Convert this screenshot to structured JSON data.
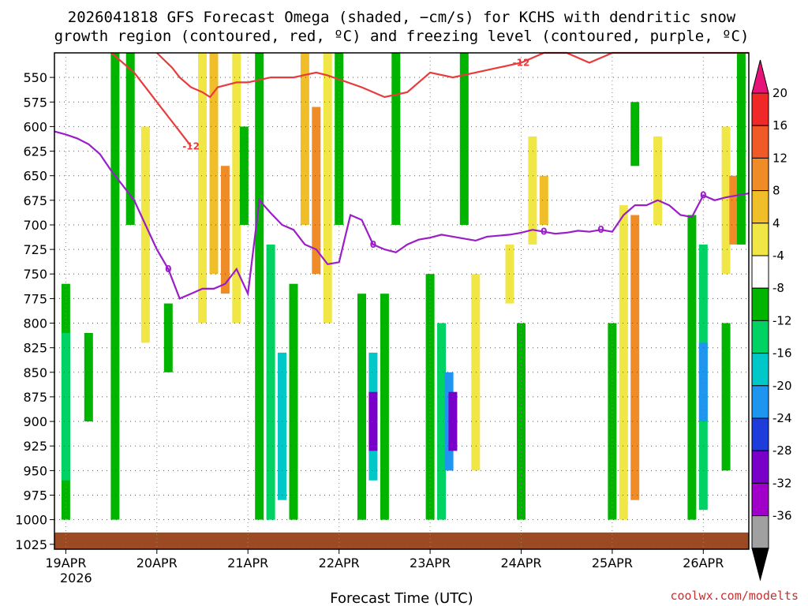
{
  "chart_data": {
    "type": "heatmap",
    "title_line1": "2026041818 GFS Forecast Omega (shaded, −cm/s) for KCHS with dendritic snow",
    "title_line2": "growth region (contoured, red, ºC) and freezing level (contoured, purple, ºC)",
    "xlabel": "Forecast Time (UTC)",
    "credit": "coolwx.com/modelts",
    "x_tick_labels": [
      "19APR",
      "20APR",
      "21APR",
      "22APR",
      "23APR",
      "24APR",
      "25APR",
      "26APR"
    ],
    "x_year_label": "2026",
    "x_range_hours": [
      -3,
      180
    ],
    "y_tick_labels": [
      "550",
      "575",
      "600",
      "625",
      "650",
      "675",
      "700",
      "725",
      "750",
      "775",
      "800",
      "825",
      "850",
      "875",
      "900",
      "925",
      "950",
      "975",
      "1000",
      "1025"
    ],
    "y_range_hpa": [
      525,
      1030
    ],
    "colorbar": {
      "labels": [
        "20",
        "16",
        "12",
        "8",
        "4",
        "-4",
        "-8",
        "-12",
        "-16",
        "-20",
        "-24",
        "-28",
        "-32",
        "-36"
      ],
      "bin_colors": [
        "#f02828",
        "#f05a28",
        "#f08c28",
        "#f0be28",
        "#f0e646",
        "#ffffff",
        "#00b400",
        "#00d264",
        "#00c8c8",
        "#1e96f0",
        "#1e3cdc",
        "#7800c8",
        "#a000c8",
        "#a0a0a0"
      ],
      "top_cap_color": "#e6147a",
      "bottom_cap_color": "#000000"
    },
    "shading_cells": [
      {
        "t": 0,
        "p0": 760,
        "p1": 1000,
        "v": -8
      },
      {
        "t": 0,
        "p0": 810,
        "p1": 960,
        "v": -12
      },
      {
        "t": 6,
        "p0": 810,
        "p1": 900,
        "v": -8
      },
      {
        "t": 13,
        "p0": 525,
        "p1": 1000,
        "v": -8
      },
      {
        "t": 17,
        "p0": 525,
        "p1": 700,
        "v": -8
      },
      {
        "t": 21,
        "p0": 600,
        "p1": 820,
        "v": 6
      },
      {
        "t": 27,
        "p0": 780,
        "p1": 850,
        "v": -8
      },
      {
        "t": 36,
        "p0": 525,
        "p1": 800,
        "v": 6
      },
      {
        "t": 39,
        "p0": 525,
        "p1": 750,
        "v": 10
      },
      {
        "t": 42,
        "p0": 640,
        "p1": 770,
        "v": 14
      },
      {
        "t": 45,
        "p0": 525,
        "p1": 800,
        "v": 6
      },
      {
        "t": 47,
        "p0": 600,
        "p1": 700,
        "v": -8
      },
      {
        "t": 51,
        "p0": 525,
        "p1": 1000,
        "v": -8
      },
      {
        "t": 54,
        "p0": 720,
        "p1": 1000,
        "v": -12
      },
      {
        "t": 57,
        "p0": 830,
        "p1": 980,
        "v": -16
      },
      {
        "t": 60,
        "p0": 760,
        "p1": 1000,
        "v": -8
      },
      {
        "t": 63,
        "p0": 525,
        "p1": 700,
        "v": 10
      },
      {
        "t": 66,
        "p0": 580,
        "p1": 750,
        "v": 14
      },
      {
        "t": 69,
        "p0": 525,
        "p1": 800,
        "v": 6
      },
      {
        "t": 72,
        "p0": 525,
        "p1": 700,
        "v": -8
      },
      {
        "t": 78,
        "p0": 770,
        "p1": 1000,
        "v": -8
      },
      {
        "t": 81,
        "p0": 830,
        "p1": 960,
        "v": -16
      },
      {
        "t": 81,
        "p0": 870,
        "p1": 930,
        "v": -26
      },
      {
        "t": 84,
        "p0": 770,
        "p1": 1000,
        "v": -8
      },
      {
        "t": 87,
        "p0": 525,
        "p1": 700,
        "v": -8
      },
      {
        "t": 96,
        "p0": 750,
        "p1": 1000,
        "v": -8
      },
      {
        "t": 99,
        "p0": 800,
        "p1": 1000,
        "v": -12
      },
      {
        "t": 101,
        "p0": 850,
        "p1": 950,
        "v": -20
      },
      {
        "t": 102,
        "p0": 870,
        "p1": 930,
        "v": -26
      },
      {
        "t": 105,
        "p0": 525,
        "p1": 700,
        "v": -8
      },
      {
        "t": 108,
        "p0": 750,
        "p1": 950,
        "v": 6
      },
      {
        "t": 117,
        "p0": 720,
        "p1": 780,
        "v": 6
      },
      {
        "t": 120,
        "p0": 800,
        "p1": 1000,
        "v": -8
      },
      {
        "t": 123,
        "p0": 610,
        "p1": 720,
        "v": 6
      },
      {
        "t": 126,
        "p0": 650,
        "p1": 700,
        "v": 10
      },
      {
        "t": 144,
        "p0": 800,
        "p1": 1000,
        "v": -8
      },
      {
        "t": 147,
        "p0": 680,
        "p1": 1000,
        "v": 6
      },
      {
        "t": 150,
        "p0": 690,
        "p1": 980,
        "v": 12
      },
      {
        "t": 150,
        "p0": 575,
        "p1": 640,
        "v": -8
      },
      {
        "t": 156,
        "p0": 610,
        "p1": 700,
        "v": 6
      },
      {
        "t": 165,
        "p0": 690,
        "p1": 1000,
        "v": -8
      },
      {
        "t": 168,
        "p0": 720,
        "p1": 990,
        "v": -12
      },
      {
        "t": 168,
        "p0": 820,
        "p1": 900,
        "v": -20
      },
      {
        "t": 174,
        "p0": 800,
        "p1": 950,
        "v": -8
      },
      {
        "t": 174,
        "p0": 600,
        "p1": 750,
        "v": 6
      },
      {
        "t": 176,
        "p0": 650,
        "p1": 720,
        "v": 14
      },
      {
        "t": 178,
        "p0": 525,
        "p1": 720,
        "v": -8
      }
    ],
    "series": [
      {
        "name": "dendritic snow growth region -12 ºC",
        "color": "#e83c3c",
        "label": "-12",
        "hours": [
          24,
          28,
          30,
          33,
          36,
          38,
          40,
          45,
          48,
          54,
          60,
          66,
          69,
          72,
          78,
          84,
          90,
          96,
          102,
          108,
          114,
          120,
          126,
          132,
          138,
          144,
          150,
          156,
          162,
          168,
          174,
          180
        ],
        "hpa": [
          525,
          540,
          550,
          560,
          565,
          570,
          560,
          555,
          555,
          550,
          550,
          545,
          548,
          552,
          560,
          570,
          565,
          545,
          550,
          545,
          540,
          535,
          520,
          525,
          535,
          525,
          525,
          525,
          525,
          525,
          525,
          525
        ]
      },
      {
        "name": "dendritic snow growth region -12 ºC (lower)",
        "color": "#e83c3c",
        "label": "-12",
        "hours": [
          12,
          15,
          18,
          21,
          24,
          27,
          30,
          33
        ],
        "hpa": [
          525,
          535,
          545,
          560,
          575,
          590,
          605,
          620
        ]
      },
      {
        "name": "freezing level 0 ºC",
        "color": "#9a1ec8",
        "label": "0",
        "hours": [
          -3,
          0,
          3,
          6,
          9,
          12,
          15,
          18,
          21,
          24,
          27,
          30,
          33,
          36,
          39,
          42,
          45,
          48,
          51,
          54,
          57,
          60,
          63,
          66,
          69,
          72,
          75,
          78,
          81,
          84,
          87,
          90,
          93,
          96,
          99,
          102,
          105,
          108,
          111,
          114,
          117,
          120,
          123,
          126,
          129,
          132,
          135,
          138,
          141,
          144,
          147,
          150,
          153,
          156,
          159,
          162,
          165,
          168,
          171,
          174,
          177,
          180
        ],
        "hpa": [
          605,
          608,
          612,
          618,
          628,
          645,
          660,
          675,
          700,
          725,
          745,
          775,
          770,
          765,
          765,
          760,
          745,
          770,
          675,
          688,
          700,
          705,
          720,
          725,
          740,
          738,
          690,
          695,
          720,
          725,
          728,
          720,
          715,
          713,
          710,
          712,
          714,
          716,
          712,
          711,
          710,
          708,
          705,
          707,
          709,
          708,
          706,
          707,
          705,
          707,
          690,
          680,
          680,
          675,
          680,
          690,
          692,
          670,
          675,
          672,
          670,
          668
        ]
      }
    ]
  }
}
